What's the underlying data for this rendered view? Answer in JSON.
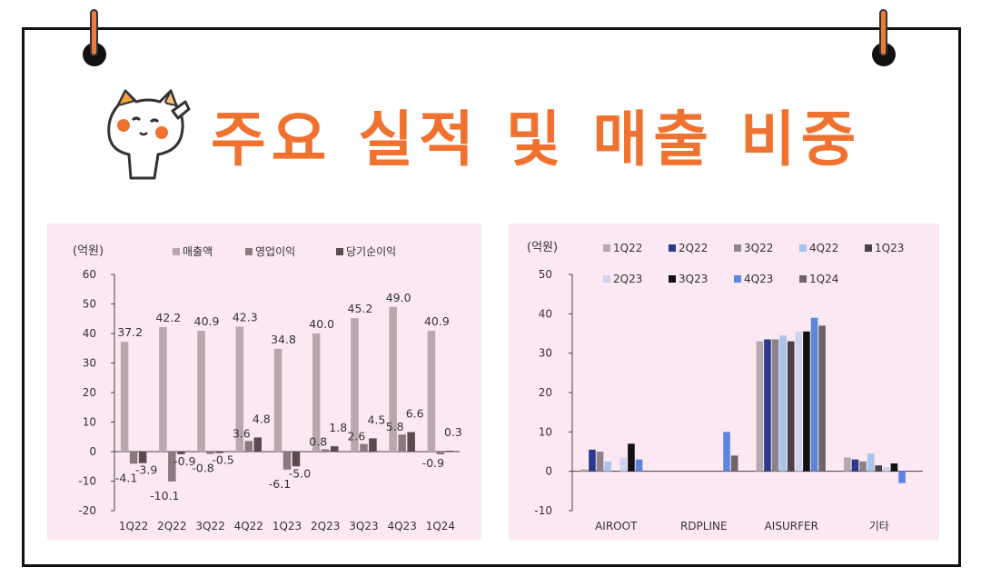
{
  "header": {
    "title": "주요 실적 및 매출 비중"
  },
  "colors": {
    "title": "#f07230",
    "panel_bg": "#fbe8f3",
    "frame": "#111111",
    "pin_accent": "#f07a3a"
  },
  "icons": {
    "mascot": "cat-saluting-icon",
    "pins": "binder-pin-icon"
  },
  "chart_data": [
    {
      "type": "bar",
      "unit_label": "(억원)",
      "categories": [
        "1Q22",
        "2Q22",
        "3Q22",
        "4Q22",
        "1Q23",
        "2Q23",
        "3Q23",
        "4Q23",
        "1Q24"
      ],
      "ylim": [
        -20,
        60
      ],
      "yticks": [
        60,
        50,
        40,
        30,
        20,
        10,
        0,
        -10,
        -20
      ],
      "legend_position": "top",
      "series": [
        {
          "name": "매출액",
          "color": "#b9a7ad",
          "values": [
            37.2,
            42.2,
            40.9,
            42.3,
            34.8,
            40.0,
            45.2,
            49.0,
            40.9
          ],
          "labels": [
            "37.2",
            "42.2",
            "40.9",
            "42.3",
            "34.8",
            "40.0",
            "45.2",
            "49.0",
            "40.9"
          ]
        },
        {
          "name": "영업이익",
          "color": "#8a7a80",
          "values": [
            -4.1,
            -10.1,
            -0.8,
            3.6,
            -6.1,
            0.8,
            2.6,
            5.8,
            -0.9
          ],
          "labels": [
            "-4.1",
            "-10.1",
            "-0.8",
            "3.6",
            "-6.1",
            "0.8",
            "2.6",
            "5.8",
            "-0.9"
          ]
        },
        {
          "name": "당기순이익",
          "color": "#5a4a50",
          "values": [
            -3.9,
            -0.9,
            -0.5,
            4.8,
            -5.0,
            1.8,
            4.5,
            6.6,
            0.3
          ],
          "labels": [
            "-3.9",
            "-0.9",
            "-0.5",
            "4.8",
            "-5.0",
            "1.8",
            "4.5",
            "6.6",
            "0.3"
          ]
        }
      ]
    },
    {
      "type": "bar",
      "unit_label": "(억원)",
      "categories": [
        "AIROOT",
        "RDPLINE",
        "AISURFER",
        "기타"
      ],
      "ylim": [
        -10,
        50
      ],
      "yticks": [
        50,
        40,
        30,
        20,
        10,
        0,
        -10
      ],
      "legend_position": "top",
      "series": [
        {
          "name": "1Q22",
          "color": "#b3a9ae",
          "values": [
            0.5,
            0,
            33.0,
            3.5
          ]
        },
        {
          "name": "2Q22",
          "color": "#2b3a8f",
          "values": [
            5.5,
            0,
            33.5,
            3.0
          ]
        },
        {
          "name": "3Q22",
          "color": "#8c8488",
          "values": [
            5.0,
            0,
            33.5,
            2.5
          ]
        },
        {
          "name": "4Q22",
          "color": "#a9c4ea",
          "values": [
            2.5,
            0,
            34.5,
            4.5
          ]
        },
        {
          "name": "1Q23",
          "color": "#4a4045",
          "values": [
            0,
            0,
            33.0,
            1.5
          ]
        },
        {
          "name": "2Q23",
          "color": "#cfd2f0",
          "values": [
            3.5,
            0,
            35.5,
            1.0
          ]
        },
        {
          "name": "3Q23",
          "color": "#111111",
          "values": [
            7.0,
            0,
            35.5,
            2.0
          ]
        },
        {
          "name": "4Q23",
          "color": "#5b86e0",
          "values": [
            3.0,
            10.0,
            39.0,
            -3.0
          ]
        },
        {
          "name": "1Q24",
          "color": "#6e6468",
          "values": [
            0,
            4.0,
            37.0,
            0
          ]
        }
      ]
    }
  ]
}
